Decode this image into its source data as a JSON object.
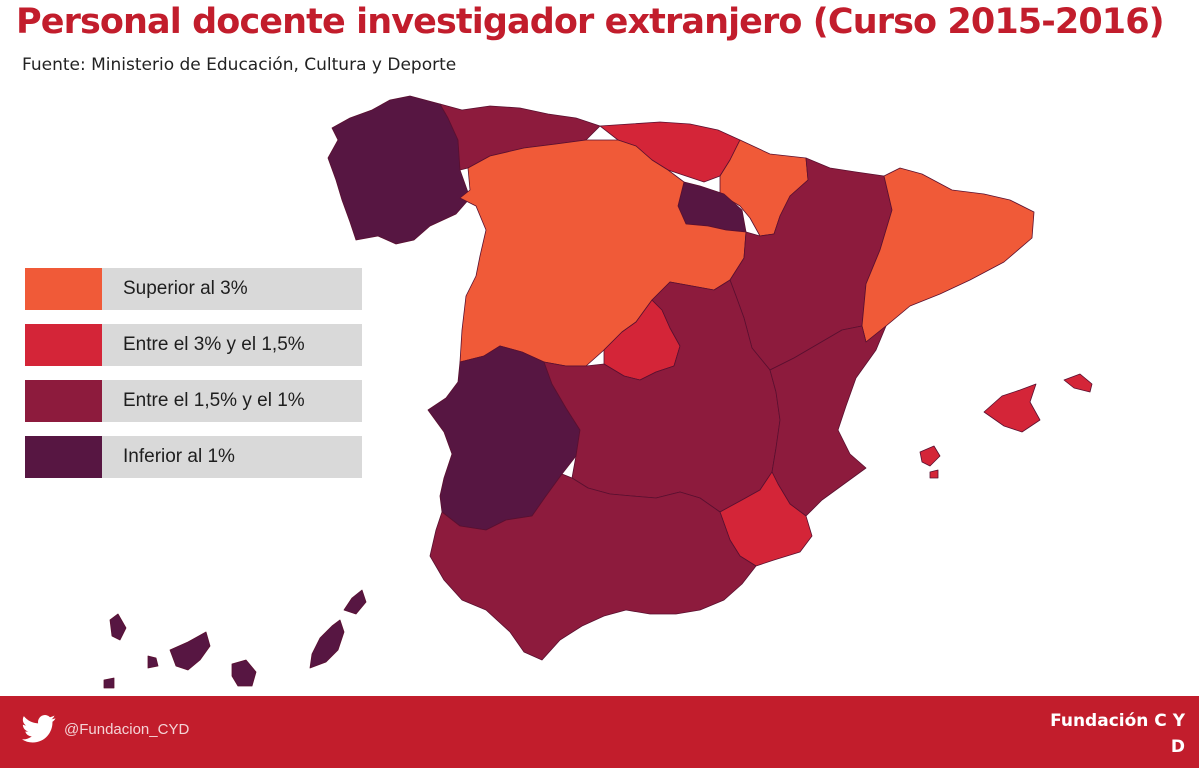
{
  "header": {
    "title": "Personal docente investigador extranjero (Curso 2015-2016)",
    "source": "Fuente: Ministerio de Educación, Cultura y Deporte"
  },
  "legend": [
    {
      "label": "Superior al 3%",
      "color": "#f05a38"
    },
    {
      "label": "Entre el 3% y el 1,5%",
      "color": "#d42538"
    },
    {
      "label": "Entre el 1,5% y el  1%",
      "color": "#8d1b3d"
    },
    {
      "label": "Inferior al 1%",
      "color": "#571642"
    }
  ],
  "map": {
    "border_color": "#5a1030",
    "regions": [
      {
        "id": "galicia",
        "category": 3
      },
      {
        "id": "asturias-cantabria",
        "category": 2
      },
      {
        "id": "pais-vasco",
        "category": 1
      },
      {
        "id": "navarra",
        "category": 0
      },
      {
        "id": "la-rioja",
        "category": 3
      },
      {
        "id": "castilla-y-leon",
        "category": 0
      },
      {
        "id": "aragon",
        "category": 2
      },
      {
        "id": "cataluna",
        "category": 0
      },
      {
        "id": "madrid",
        "category": 1
      },
      {
        "id": "extremadura",
        "category": 3
      },
      {
        "id": "castilla-la-mancha",
        "category": 2
      },
      {
        "id": "comunidad-valenciana",
        "category": 2
      },
      {
        "id": "murcia",
        "category": 1
      },
      {
        "id": "andalucia",
        "category": 2
      },
      {
        "id": "islas-baleares",
        "category": 1
      },
      {
        "id": "islas-canarias",
        "category": 3
      }
    ]
  },
  "footer": {
    "twitter_icon": "twitter-bird-icon",
    "handle": "@Fundacion_CYD",
    "brand_line1": "Fundación C Y",
    "brand_line2": "D",
    "bar_color": "#c21d2c"
  }
}
